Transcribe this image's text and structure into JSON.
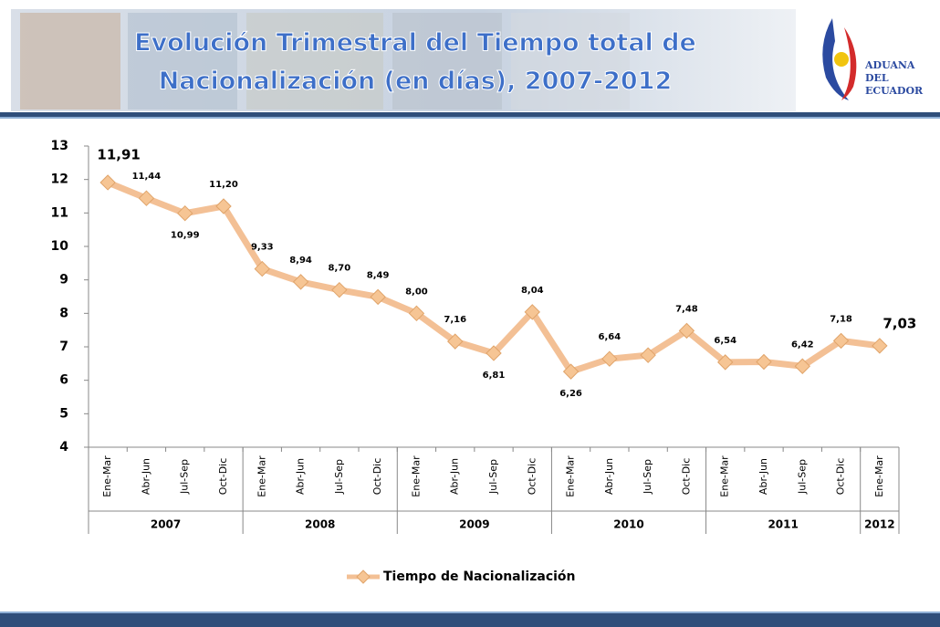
{
  "header": {
    "title_lines": [
      "Evolución Trimestral del Tiempo total de",
      "Nacionalización (en días), 2007-2012"
    ],
    "logo_lines": [
      "ADUANA",
      "DEL",
      "ECUADOR"
    ]
  },
  "chart_data": {
    "type": "line",
    "groups": [
      {
        "name": "2007",
        "categories": [
          "Ene-Mar",
          "Abr-Jun",
          "Jul-Sep",
          "Oct-Dic"
        ]
      },
      {
        "name": "2008",
        "categories": [
          "Ene-Mar",
          "Abr-Jun",
          "Jul-Sep",
          "Oct-Dic"
        ]
      },
      {
        "name": "2009",
        "categories": [
          "Ene-Mar",
          "Abr-Jun",
          "Jul-Sep",
          "Oct-Dic"
        ]
      },
      {
        "name": "2010",
        "categories": [
          "Ene-Mar",
          "Abr-Jun",
          "Jul-Sep",
          "Oct-Dic"
        ]
      },
      {
        "name": "2011",
        "categories": [
          "Ene-Mar",
          "Abr-Jun",
          "Jul-Sep",
          "Oct-Dic"
        ]
      },
      {
        "name": "2012",
        "categories": [
          "Ene-Mar"
        ]
      }
    ],
    "series": [
      {
        "name": "Tiempo de Nacionalización",
        "color": "#f3c095",
        "values": [
          11.91,
          11.44,
          10.99,
          11.2,
          9.33,
          8.94,
          8.7,
          8.49,
          8.0,
          7.16,
          6.81,
          8.04,
          6.26,
          6.64,
          6.75,
          7.48,
          6.54,
          6.55,
          6.42,
          7.18,
          7.03
        ],
        "value_labels": [
          "11,91",
          "11,44",
          "10,99",
          "11,20",
          "9,33",
          "8,94",
          "8,70",
          "8,49",
          "8,00",
          "7,16",
          "6,81",
          "8,04",
          "6,26",
          "6,64",
          null,
          "7,48",
          "6,54",
          null,
          "6,42",
          "7,18",
          "7,03"
        ]
      }
    ],
    "ylim": [
      4,
      13
    ],
    "yticks": [
      4,
      5,
      6,
      7,
      8,
      9,
      10,
      11,
      12,
      13
    ],
    "grid": false,
    "legend": "bottom"
  }
}
